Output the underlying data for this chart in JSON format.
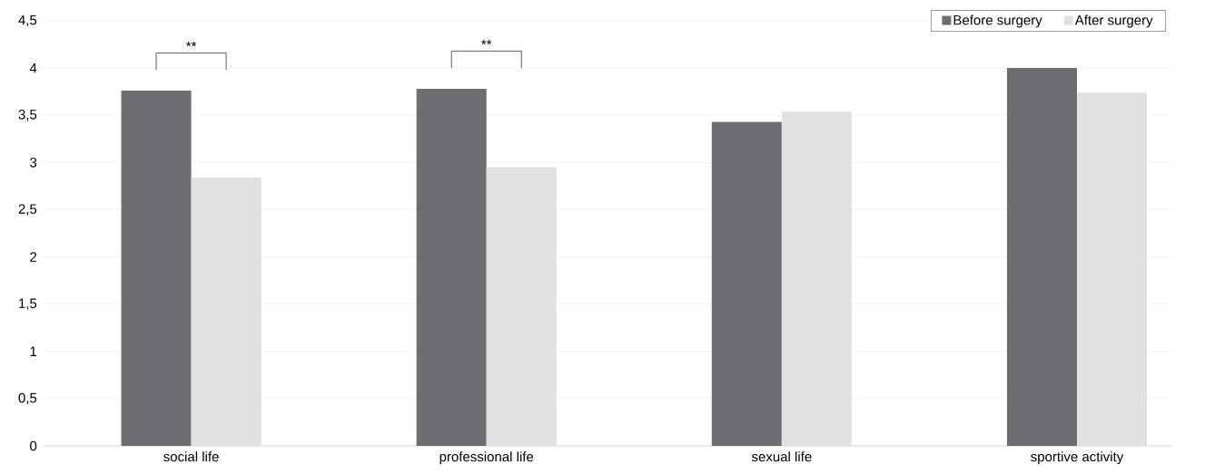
{
  "chart_data": {
    "type": "bar",
    "categories": [
      "social life",
      "professional life",
      "sexual life",
      "sportive activity"
    ],
    "series": [
      {
        "name": "Before surgery",
        "color": "#6d6e71",
        "values": [
          3.76,
          3.78,
          3.43,
          4.0
        ]
      },
      {
        "name": "After surgery",
        "color": "#e0e1e3",
        "values": [
          2.84,
          2.95,
          3.54,
          3.74
        ]
      }
    ],
    "ylim": [
      0,
      4.5
    ],
    "yticks": [
      0,
      {
        "value": 0.5,
        "label": "0,5"
      },
      1,
      {
        "value": 1.5,
        "label": "1,5"
      },
      2,
      {
        "value": 2.5,
        "label": "2,5"
      },
      3,
      {
        "value": 3.5,
        "label": "3,5"
      },
      4,
      {
        "value": 4.5,
        "label": "4,5"
      }
    ],
    "grid": "y",
    "legend": "top right",
    "annotations": [
      "**",
      "**"
    ]
  }
}
